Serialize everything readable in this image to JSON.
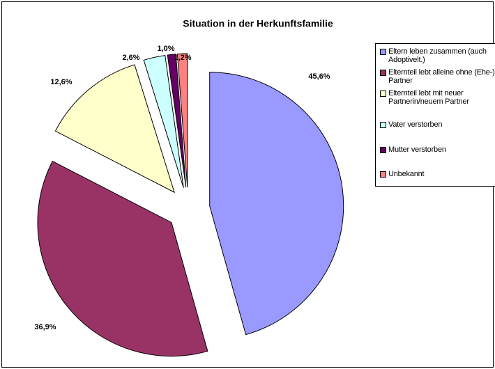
{
  "chart_data": {
    "type": "pie",
    "title": "Situation in der Herkunftsfamilie",
    "categories": [
      "Eltern leben zusammen (auch Adoptivelt.)",
      "Elternteil lebt alleine ohne (Ehe-) Partner",
      "Elternteil lebt mit neuer Partnerin/neuem Partner",
      "Vater verstorben",
      "Mutter verstorben",
      "Unbekannt"
    ],
    "values": [
      45.6,
      36.9,
      12.6,
      2.6,
      1.0,
      1.2
    ],
    "value_labels": [
      "45,6%",
      "36,9%",
      "12,6%",
      "2,6%",
      "1,0%",
      "1,2%"
    ],
    "colors": [
      "#9999ff",
      "#993366",
      "#ffffcc",
      "#ccffff",
      "#660066",
      "#ff8080"
    ],
    "legend": "right"
  }
}
